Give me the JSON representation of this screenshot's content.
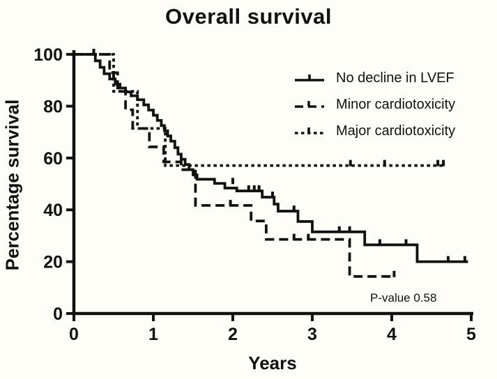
{
  "colors": {
    "ink": "#111111",
    "background": "#fffdf8"
  },
  "chart_data": {
    "type": "line",
    "subtype": "kaplan-meier-step",
    "title": "Overall survival",
    "xlabel": "Years",
    "ylabel": "Percentage survival",
    "annotation": "P-value 0.58",
    "xlim": [
      0,
      5
    ],
    "ylim": [
      0,
      100
    ],
    "xticks": [
      "0",
      "1",
      "2",
      "3",
      "4",
      "5"
    ],
    "yticks": [
      "0",
      "20",
      "40",
      "60",
      "80",
      "100"
    ],
    "grid": false,
    "legend_position": "upper right",
    "series": [
      {
        "name": "No decline in LVEF",
        "style": "solid",
        "steps": [
          [
            0,
            100
          ],
          [
            0.27,
            97.5
          ],
          [
            0.33,
            95
          ],
          [
            0.38,
            92.5
          ],
          [
            0.45,
            90.5
          ],
          [
            0.52,
            88.5
          ],
          [
            0.58,
            87
          ],
          [
            0.65,
            85.5
          ],
          [
            0.72,
            84
          ],
          [
            0.8,
            82.5
          ],
          [
            0.88,
            80.5
          ],
          [
            0.94,
            78.5
          ],
          [
            1.0,
            76.5
          ],
          [
            1.05,
            74.5
          ],
          [
            1.1,
            72.5
          ],
          [
            1.14,
            70.5
          ],
          [
            1.18,
            68.5
          ],
          [
            1.22,
            66.5
          ],
          [
            1.27,
            64
          ],
          [
            1.31,
            61.5
          ],
          [
            1.35,
            59.5
          ],
          [
            1.4,
            57.5
          ],
          [
            1.45,
            55.5
          ],
          [
            1.5,
            53.5
          ],
          [
            1.55,
            51.8
          ],
          [
            1.77,
            50.2
          ],
          [
            1.9,
            48.4
          ],
          [
            2.05,
            47.3
          ],
          [
            2.37,
            44.9
          ],
          [
            2.52,
            42.2
          ],
          [
            2.57,
            39.5
          ],
          [
            2.82,
            35.5
          ],
          [
            3.0,
            31.5
          ],
          [
            3.66,
            26.5
          ],
          [
            4.32,
            20
          ]
        ],
        "end_time": 4.96,
        "censors": [
          [
            0.25,
            100
          ],
          [
            0.5,
            90.5
          ],
          [
            2.0,
            50.2
          ],
          [
            2.2,
            47.3
          ],
          [
            2.27,
            47.3
          ],
          [
            2.33,
            47.3
          ],
          [
            2.5,
            44.9
          ],
          [
            2.77,
            39.5
          ],
          [
            3.34,
            31.5
          ],
          [
            3.47,
            31.5
          ],
          [
            3.85,
            26.5
          ],
          [
            4.18,
            26.5
          ],
          [
            4.71,
            20
          ],
          [
            4.92,
            20
          ]
        ]
      },
      {
        "name": "Minor cardiotoxicity",
        "style": "dashed",
        "steps": [
          [
            0,
            100
          ],
          [
            0.45,
            92.9
          ],
          [
            0.55,
            85.7
          ],
          [
            0.65,
            78.6
          ],
          [
            0.74,
            71.4
          ],
          [
            0.95,
            64.3
          ],
          [
            1.13,
            58.5
          ],
          [
            1.35,
            55.5
          ],
          [
            1.53,
            41.7
          ],
          [
            2.23,
            35.7
          ],
          [
            2.42,
            28.6
          ],
          [
            3.47,
            14.3
          ]
        ],
        "end_time": 4.03,
        "censors": [
          [
            1.97,
            41.7
          ],
          [
            2.77,
            28.6
          ],
          [
            2.95,
            28.6
          ],
          [
            4.03,
            14.3
          ]
        ]
      },
      {
        "name": "Major cardiotoxicity",
        "style": "dotted",
        "steps": [
          [
            0,
            100
          ],
          [
            0.5,
            85.7
          ],
          [
            0.8,
            71.4
          ],
          [
            1.15,
            57.1
          ]
        ],
        "end_time": 4.66,
        "censors": [
          [
            3.48,
            57.1
          ],
          [
            3.91,
            57.1
          ],
          [
            4.58,
            57.1
          ],
          [
            4.65,
            57.1
          ]
        ]
      }
    ]
  }
}
